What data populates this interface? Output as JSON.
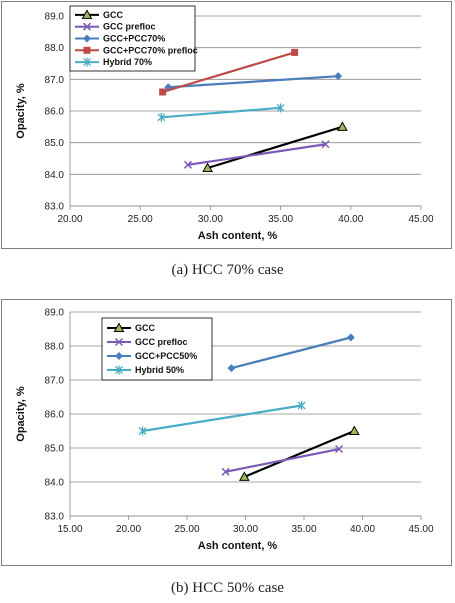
{
  "chart_data": [
    {
      "id": "a",
      "type": "line",
      "caption": "(a) HCC 70% case",
      "xlabel": "Ash content, %",
      "ylabel": "Opacity, %",
      "xlim": [
        20,
        45
      ],
      "ylim": [
        83,
        89
      ],
      "xticks": [
        "20.00",
        "25.00",
        "30.00",
        "35.00",
        "40.00",
        "45.00"
      ],
      "yticks": [
        "83.0",
        "84.0",
        "85.0",
        "86.0",
        "87.0",
        "88.0",
        "89.0"
      ],
      "grid": true,
      "legend_position": "top-left",
      "series": [
        {
          "name": "GCC",
          "color": "#000000",
          "marker": "triangle",
          "points": [
            [
              29.8,
              84.2
            ],
            [
              39.4,
              85.5
            ]
          ]
        },
        {
          "name": "GCC prefloc",
          "color": "#7b59b6",
          "marker": "x",
          "points": [
            [
              28.4,
              84.3
            ],
            [
              38.2,
              84.95
            ]
          ]
        },
        {
          "name": "GCC+PCC70%",
          "color": "#4a7ebb",
          "marker": "diamond",
          "points": [
            [
              27.0,
              86.75
            ],
            [
              39.1,
              87.1
            ]
          ]
        },
        {
          "name": "GCC+PCC70% prefloc",
          "color": "#be4b48",
          "marker": "square",
          "points": [
            [
              26.6,
              86.6
            ],
            [
              36.0,
              87.85
            ]
          ]
        },
        {
          "name": "Hybrid 70%",
          "color": "#4bacc6",
          "marker": "star",
          "points": [
            [
              26.5,
              85.8
            ],
            [
              35.0,
              86.1
            ]
          ]
        }
      ]
    },
    {
      "id": "b",
      "type": "line",
      "caption": "(b) HCC 50% case",
      "xlabel": "Ash content, %",
      "ylabel": "Opacity, %",
      "xlim": [
        15,
        45
      ],
      "ylim": [
        83,
        89
      ],
      "xticks": [
        "15.00",
        "20.00",
        "25.00",
        "30.00",
        "35.00",
        "40.00",
        "45.00"
      ],
      "yticks": [
        "83.0",
        "84.0",
        "85.0",
        "86.0",
        "87.0",
        "88.0",
        "89.0"
      ],
      "grid": true,
      "legend_position": "top-left",
      "series": [
        {
          "name": "GCC",
          "color": "#000000",
          "marker": "triangle",
          "points": [
            [
              29.9,
              84.15
            ],
            [
              39.3,
              85.5
            ]
          ]
        },
        {
          "name": "GCC prefloc",
          "color": "#7b59b6",
          "marker": "x",
          "points": [
            [
              28.3,
              84.3
            ],
            [
              38.0,
              84.97
            ]
          ]
        },
        {
          "name": "GCC+PCC50%",
          "color": "#4a7ebb",
          "marker": "diamond",
          "points": [
            [
              28.8,
              87.35
            ],
            [
              39.0,
              88.25
            ]
          ]
        },
        {
          "name": "Hybrid 50%",
          "color": "#4bacc6",
          "marker": "star",
          "points": [
            [
              21.2,
              85.5
            ],
            [
              34.8,
              86.25
            ]
          ]
        }
      ]
    }
  ]
}
